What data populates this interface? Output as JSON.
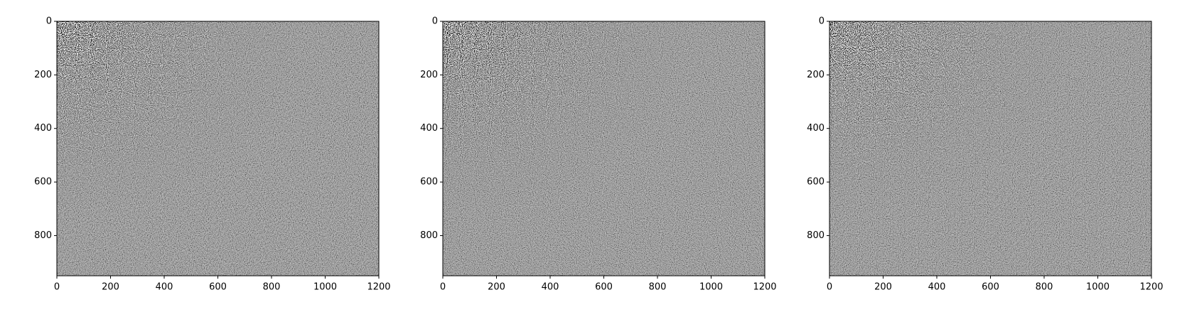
{
  "chart_data": [
    {
      "type": "image",
      "colormap": "gray",
      "xlim": [
        0,
        1200
      ],
      "xticks": [
        0,
        200,
        400,
        600,
        800,
        1000,
        1200
      ],
      "ylim": [
        950,
        0
      ],
      "yticks": [
        0,
        200,
        400,
        600,
        800
      ]
    },
    {
      "type": "image",
      "colormap": "gray",
      "xlim": [
        0,
        1200
      ],
      "xticks": [
        0,
        200,
        400,
        600,
        800,
        1000,
        1200
      ],
      "ylim": [
        950,
        0
      ],
      "yticks": [
        0,
        200,
        400,
        600,
        800
      ]
    },
    {
      "type": "image",
      "colormap": "gray",
      "xlim": [
        0,
        1200
      ],
      "xticks": [
        0,
        200,
        400,
        600,
        800,
        1000,
        1200
      ],
      "ylim": [
        950,
        0
      ],
      "yticks": [
        0,
        200,
        400,
        600,
        800
      ]
    }
  ]
}
